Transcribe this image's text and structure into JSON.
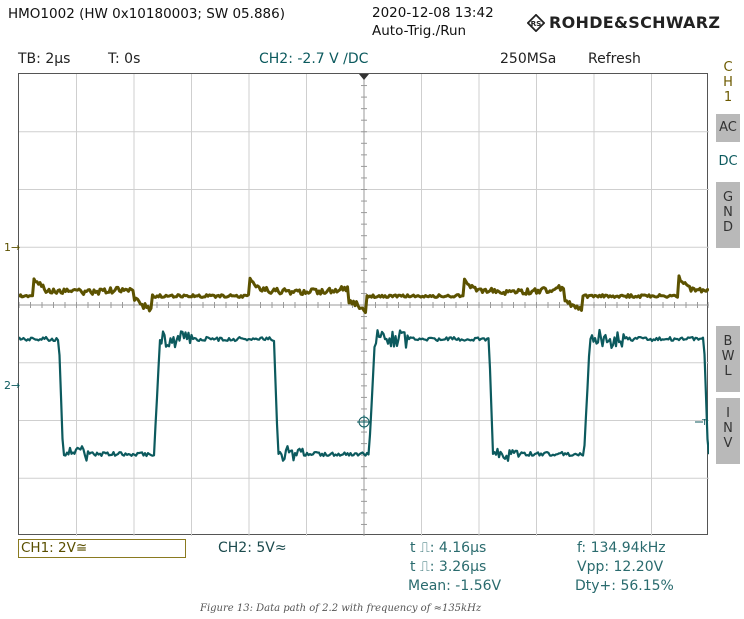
{
  "header": {
    "device": "HMO1002 (HW 0x10180003; SW 05.886)",
    "datetime": "2020-12-08 13:42",
    "trigger_status": "Auto-Trig./Run",
    "brand": "ROHDE&SCHWARZ"
  },
  "status": {
    "timebase": "TB: 2µs",
    "trigger_time": "T: 0s",
    "ch2_trigger": "CH2: -2.7 V ∕DC",
    "sample_rate": "250MSa",
    "acq_mode": "Refresh"
  },
  "right_panel": {
    "channel": "CH1",
    "coupling": [
      "AC",
      "DC",
      "GND"
    ],
    "bwl": "BWL",
    "inv": "INV"
  },
  "markers": {
    "ch1": "1",
    "ch2": "2"
  },
  "colors": {
    "ch1": "#5c5200",
    "ch2": "#0c5a5e",
    "grid": "#c8c8c8"
  },
  "bottom": {
    "ch1": "CH1: 2V≅",
    "ch2": "CH2: 5V≈",
    "measurements": {
      "pos_width": "t ⎍: 4.16µs",
      "neg_width": "t ⎍: 3.26µs",
      "mean": "Mean: -1.56V",
      "freq": "f: 134.94kHz",
      "vpp": "Vpp: 12.20V",
      "duty": "Dty+: 56.15%"
    }
  },
  "caption": "Figure 13: Data path of 2.2 with frequency of ≈135kHz"
}
